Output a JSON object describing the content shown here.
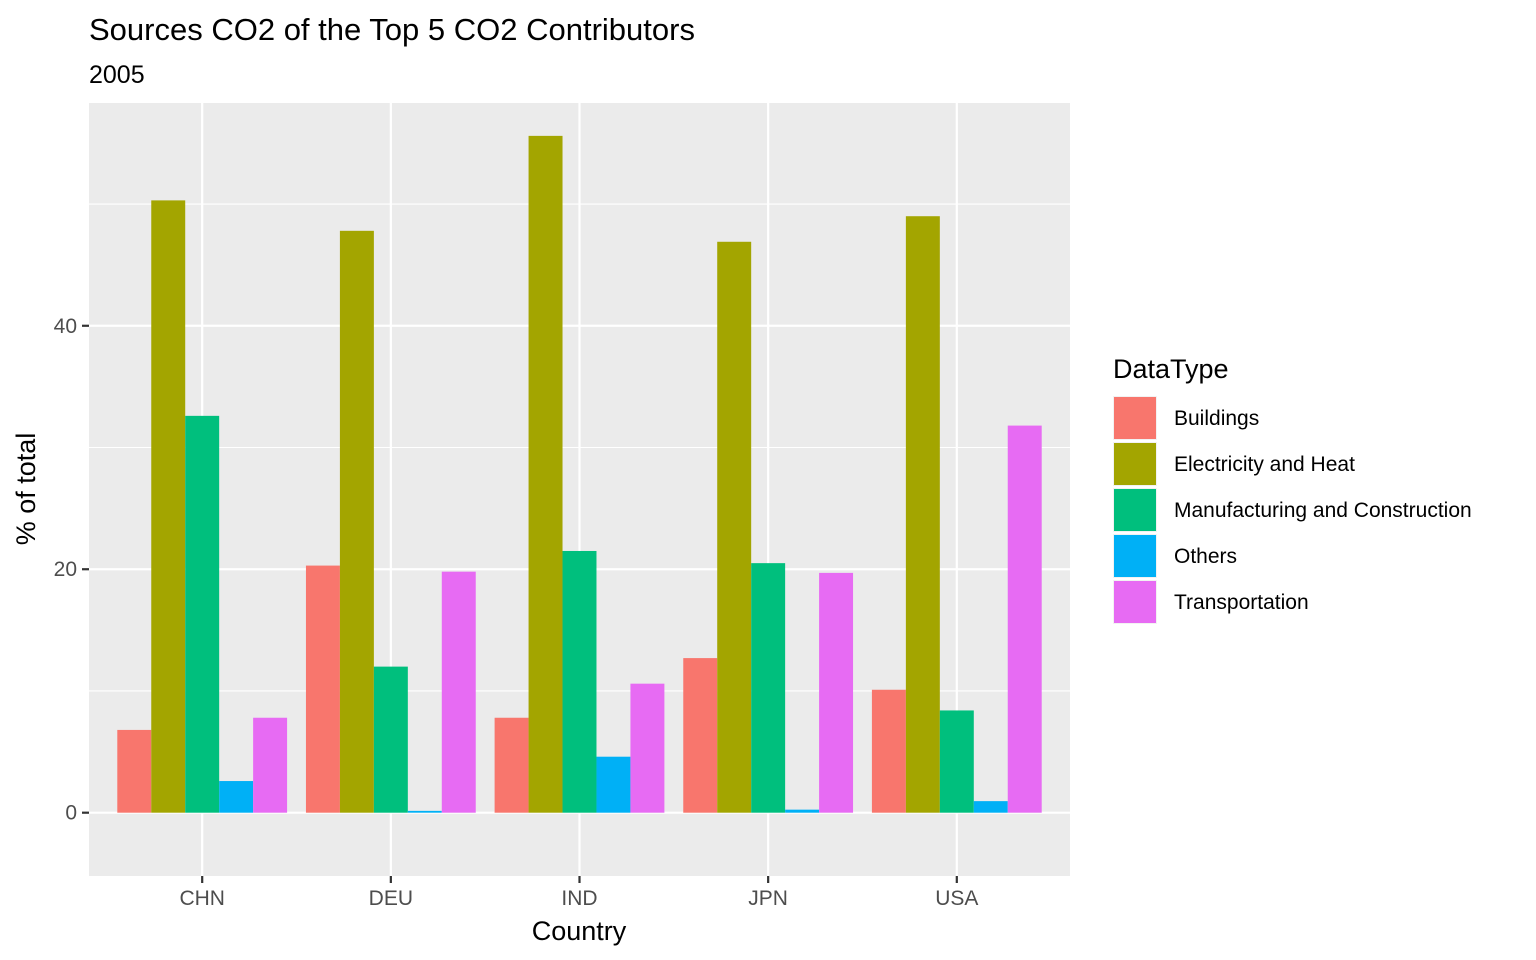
{
  "chart_data": {
    "type": "bar",
    "title": "Sources CO2 of the Top 5 CO2 Contributors",
    "subtitle": "2005",
    "xlabel": "Country",
    "ylabel": "% of total",
    "categories": [
      "CHN",
      "DEU",
      "IND",
      "JPN",
      "USA"
    ],
    "y_ticks": [
      0,
      20,
      40
    ],
    "y_tick_labels": [
      "0",
      "20",
      "40"
    ],
    "ylim": [
      -5.2,
      58.3
    ],
    "grid": true,
    "legend": {
      "title": "DataType",
      "position": "right"
    },
    "series": [
      {
        "name": "Buildings",
        "color": "#F8766D",
        "values": [
          6.8,
          20.3,
          7.8,
          12.7,
          10.1
        ]
      },
      {
        "name": "Electricity and Heat",
        "color": "#A3A500",
        "values": [
          50.3,
          47.8,
          55.6,
          46.9,
          49.0
        ]
      },
      {
        "name": "Manufacturing and Construction",
        "color": "#00BF7D",
        "values": [
          32.6,
          12.0,
          21.5,
          20.5,
          8.4
        ]
      },
      {
        "name": "Others",
        "color": "#00B0F6",
        "values": [
          2.6,
          0.15,
          4.6,
          0.25,
          0.95
        ]
      },
      {
        "name": "Transportation",
        "color": "#E76BF3",
        "values": [
          7.8,
          19.8,
          10.6,
          19.7,
          31.8
        ]
      }
    ]
  }
}
